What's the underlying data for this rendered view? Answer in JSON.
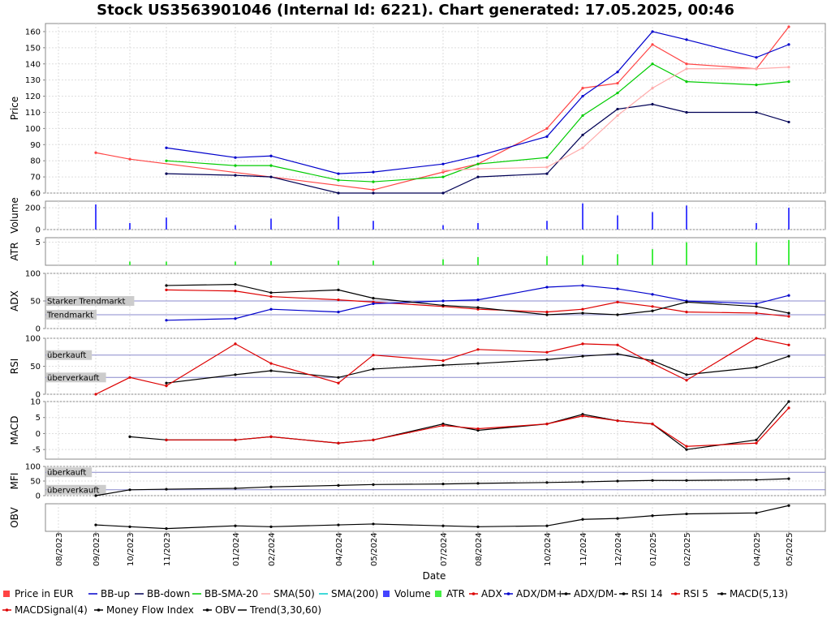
{
  "title": "Stock US3563901046 (Internal Id: 6221). Chart generated: 17.05.2025, 00:46",
  "x_axis_label": "Date",
  "x_ticks": [
    "08/2023",
    "09/2023",
    "10/2023",
    "11/2023",
    "01/2024",
    "02/2024",
    "04/2024",
    "05/2024",
    "07/2024",
    "08/2024",
    "10/2024",
    "11/2024",
    "12/2024",
    "01/2025",
    "02/2025",
    "04/2025",
    "05/2025"
  ],
  "legend": [
    {
      "label": "Price in EUR",
      "color": "#ff4444",
      "kind": "box"
    },
    {
      "label": "BB-up",
      "color": "#0000cc",
      "kind": "line"
    },
    {
      "label": "BB-down",
      "color": "#000055",
      "kind": "line"
    },
    {
      "label": "BB-SMA-20",
      "color": "#00cc00",
      "kind": "line"
    },
    {
      "label": "SMA(50)",
      "color": "#ffaaaa",
      "kind": "line"
    },
    {
      "label": "SMA(200)",
      "color": "#00cccc",
      "kind": "line"
    },
    {
      "label": "Volume",
      "color": "#4444ff",
      "kind": "box"
    },
    {
      "label": "ATR",
      "color": "#44ee44",
      "kind": "box"
    },
    {
      "label": "ADX",
      "color": "#dd0000",
      "kind": "marker"
    },
    {
      "label": "ADX/DM+",
      "color": "#0000cc",
      "kind": "marker"
    },
    {
      "label": "ADX/DM-",
      "color": "#000000",
      "kind": "marker"
    },
    {
      "label": "RSI 14",
      "color": "#000000",
      "kind": "marker"
    },
    {
      "label": "RSI 5",
      "color": "#dd0000",
      "kind": "marker"
    },
    {
      "label": "MACD(5,13)",
      "color": "#000000",
      "kind": "marker"
    },
    {
      "label": "MACDSignal(4)",
      "color": "#dd0000",
      "kind": "marker"
    },
    {
      "label": "Money Flow Index",
      "color": "#000000",
      "kind": "marker"
    },
    {
      "label": "OBV",
      "color": "#000000",
      "kind": "marker"
    },
    {
      "label": "Trend(3,30,60)",
      "color": "#000000",
      "kind": "line"
    }
  ],
  "panels": {
    "price": {
      "ylabel": "Price",
      "ticks": [
        "160",
        "150",
        "140",
        "130",
        "120",
        "110",
        "100",
        "90",
        "80",
        "70",
        "60"
      ]
    },
    "volume": {
      "ylabel": "Volume",
      "ticks": [
        "200",
        "0"
      ]
    },
    "atr": {
      "ylabel": "ATR",
      "ticks": [
        "5"
      ]
    },
    "adx": {
      "ylabel": "ADX",
      "ticks": [
        "100",
        "50",
        "0"
      ],
      "tag_high": "Starker Trendmarkt",
      "tag_low": "Trendmarkt"
    },
    "rsi": {
      "ylabel": "RSI",
      "ticks": [
        "100",
        "50",
        "0"
      ],
      "tag_high": "überkauft",
      "tag_low": "überverkauft"
    },
    "macd": {
      "ylabel": "MACD",
      "ticks": [
        "10",
        "5",
        "0",
        "-5"
      ]
    },
    "mfi": {
      "ylabel": "MFI",
      "ticks": [
        "100",
        "50",
        "0"
      ],
      "tag_high": "überkauft",
      "tag_low": "überverkauft"
    },
    "obv": {
      "ylabel": "OBV",
      "ticks": []
    }
  },
  "chart_data": [
    {
      "type": "line",
      "panel": "Price",
      "x": [
        "08/2023",
        "09/2023",
        "10/2023",
        "11/2023",
        "01/2024",
        "02/2024",
        "04/2024",
        "05/2024",
        "07/2024",
        "08/2024",
        "10/2024",
        "11/2024",
        "12/2024",
        "01/2025",
        "02/2025",
        "04/2025",
        "05/2025"
      ],
      "series": [
        {
          "name": "Price in EUR",
          "values": [
            null,
            85,
            81,
            null,
            null,
            null,
            null,
            62,
            73,
            78,
            100,
            125,
            128,
            152,
            140,
            137,
            163
          ]
        },
        {
          "name": "BB-up",
          "values": [
            null,
            null,
            null,
            88,
            82,
            83,
            72,
            73,
            78,
            83,
            95,
            120,
            135,
            160,
            155,
            144,
            152
          ]
        },
        {
          "name": "BB-down",
          "values": [
            null,
            null,
            null,
            72,
            71,
            70,
            60,
            56,
            60,
            70,
            72,
            96,
            112,
            115,
            110,
            110,
            104
          ]
        },
        {
          "name": "BB-SMA-20",
          "values": [
            null,
            null,
            null,
            80,
            77,
            77,
            68,
            67,
            70,
            78,
            82,
            108,
            122,
            140,
            129,
            127,
            129
          ]
        },
        {
          "name": "SMA(50)",
          "values": [
            null,
            null,
            null,
            null,
            null,
            null,
            null,
            null,
            74,
            75,
            76,
            88,
            108,
            125,
            137,
            137,
            138
          ]
        }
      ],
      "ylim": [
        60,
        165
      ]
    },
    {
      "type": "bar",
      "panel": "Volume",
      "categories": [
        "08/2023",
        "09/2023",
        "10/2023",
        "11/2023",
        "01/2024",
        "02/2024",
        "04/2024",
        "05/2024",
        "07/2024",
        "08/2024",
        "10/2024",
        "11/2024",
        "12/2024",
        "01/2025",
        "02/2025",
        "04/2025",
        "05/2025"
      ],
      "values": [
        0,
        230,
        60,
        110,
        40,
        100,
        120,
        80,
        40,
        60,
        80,
        240,
        130,
        160,
        220,
        60,
        200
      ],
      "ylim": [
        0,
        260
      ]
    },
    {
      "type": "bar",
      "panel": "ATR",
      "categories": [
        "08/2023",
        "09/2023",
        "10/2023",
        "11/2023",
        "01/2024",
        "02/2024",
        "04/2024",
        "05/2024",
        "07/2024",
        "08/2024",
        "10/2024",
        "11/2024",
        "12/2024",
        "01/2025",
        "02/2025",
        "04/2025",
        "05/2025"
      ],
      "values": [
        0,
        0,
        0.8,
        0.8,
        0.8,
        0.9,
        1,
        1,
        1.3,
        1.8,
        2,
        2.2,
        2.4,
        3.5,
        5,
        5,
        5.5
      ],
      "ylim": [
        0,
        6
      ]
    },
    {
      "type": "line",
      "panel": "ADX",
      "x": [
        "11/2023",
        "01/2024",
        "02/2024",
        "04/2024",
        "05/2024",
        "07/2024",
        "08/2024",
        "10/2024",
        "11/2024",
        "12/2024",
        "01/2025",
        "02/2025",
        "04/2025",
        "05/2025"
      ],
      "series": [
        {
          "name": "ADX",
          "values": [
            70,
            68,
            58,
            52,
            48,
            40,
            35,
            30,
            35,
            48,
            40,
            30,
            28,
            22
          ]
        },
        {
          "name": "ADX/DM+",
          "values": [
            15,
            18,
            35,
            30,
            45,
            50,
            52,
            75,
            78,
            72,
            62,
            50,
            45,
            60
          ]
        },
        {
          "name": "ADX/DM-",
          "values": [
            78,
            80,
            65,
            70,
            55,
            42,
            38,
            25,
            28,
            25,
            32,
            48,
            40,
            28
          ]
        }
      ],
      "ylim": [
        0,
        100
      ]
    },
    {
      "type": "line",
      "panel": "RSI",
      "x": [
        "09/2023",
        "10/2023",
        "11/2023",
        "01/2024",
        "02/2024",
        "04/2024",
        "05/2024",
        "07/2024",
        "08/2024",
        "10/2024",
        "11/2024",
        "12/2024",
        "01/2025",
        "02/2025",
        "04/2025",
        "05/2025"
      ],
      "series": [
        {
          "name": "RSI 14",
          "values": [
            null,
            null,
            20,
            35,
            42,
            30,
            45,
            52,
            55,
            62,
            68,
            72,
            60,
            35,
            48,
            68
          ]
        },
        {
          "name": "RSI 5",
          "values": [
            0,
            30,
            15,
            90,
            55,
            20,
            70,
            60,
            80,
            75,
            90,
            88,
            55,
            25,
            100,
            88
          ]
        }
      ],
      "ylim": [
        0,
        100
      ]
    },
    {
      "type": "line",
      "panel": "MACD",
      "x": [
        "10/2023",
        "11/2023",
        "01/2024",
        "02/2024",
        "04/2024",
        "05/2024",
        "07/2024",
        "08/2024",
        "10/2024",
        "11/2024",
        "12/2024",
        "01/2025",
        "02/2025",
        "04/2025",
        "05/2025"
      ],
      "series": [
        {
          "name": "MACD(5,13)",
          "values": [
            -1,
            -2,
            -2,
            -1,
            -3,
            -2,
            3,
            1,
            3,
            6,
            4,
            3,
            -5,
            -2,
            10
          ]
        },
        {
          "name": "MACDSignal(4)",
          "values": [
            null,
            -2,
            -2,
            -1,
            -3,
            -2,
            2.5,
            1.5,
            3,
            5.5,
            4,
            3,
            -4,
            -3,
            8
          ]
        }
      ],
      "ylim": [
        -8,
        10
      ]
    },
    {
      "type": "line",
      "panel": "MFI",
      "x": [
        "09/2023",
        "10/2023",
        "11/2023",
        "01/2024",
        "02/2024",
        "04/2024",
        "05/2024",
        "07/2024",
        "08/2024",
        "10/2024",
        "11/2024",
        "12/2024",
        "01/2025",
        "02/2025",
        "04/2025",
        "05/2025"
      ],
      "series": [
        {
          "name": "Money Flow Index",
          "values": [
            0,
            20,
            22,
            25,
            30,
            35,
            38,
            40,
            42,
            45,
            47,
            50,
            52,
            52,
            54,
            58
          ]
        }
      ],
      "ylim": [
        0,
        100
      ]
    },
    {
      "type": "line",
      "panel": "OBV",
      "x": [
        "09/2023",
        "10/2023",
        "11/2023",
        "01/2024",
        "02/2024",
        "04/2024",
        "05/2024",
        "07/2024",
        "08/2024",
        "10/2024",
        "11/2024",
        "12/2024",
        "01/2025",
        "02/2025",
        "04/2025",
        "05/2025"
      ],
      "series": [
        {
          "name": "OBV",
          "values": [
            0.3,
            0.1,
            -0.1,
            0.2,
            0.1,
            0.3,
            0.4,
            0.2,
            0.1,
            0.2,
            0.9,
            1.0,
            1.3,
            1.5,
            1.6,
            2.4
          ]
        }
      ]
    }
  ]
}
